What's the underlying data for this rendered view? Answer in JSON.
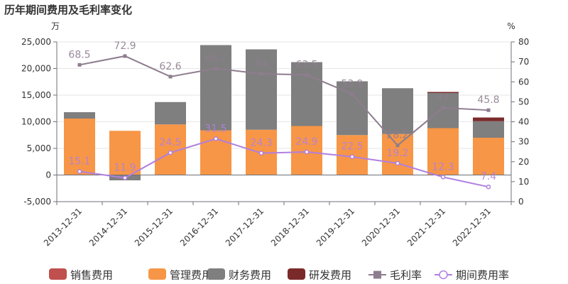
{
  "chart_data": {
    "type": "bar",
    "title": "历年期间费用及毛利率变化",
    "left_unit": "万",
    "right_unit": "%",
    "categories": [
      "2013-12-31",
      "2014-12-31",
      "2015-12-31",
      "2016-12-31",
      "2017-12-31",
      "2018-12-31",
      "2019-12-31",
      "2020-12-31",
      "2021-12-31",
      "2022-12-31"
    ],
    "left_axis": {
      "min": -5000,
      "max": 25000,
      "ticks": [
        "-5,000",
        "0",
        "5,000",
        "10,000",
        "15,000",
        "20,000",
        "25,000"
      ]
    },
    "right_axis": {
      "min": 0,
      "max": 80,
      "ticks": [
        "0",
        "10",
        "20",
        "30",
        "40",
        "50",
        "60",
        "70",
        "80"
      ]
    },
    "bar_series": [
      {
        "name": "销售费用",
        "color": "#c0504d",
        "values": [
          0,
          0,
          0,
          0,
          0,
          0,
          0,
          0,
          0,
          0
        ]
      },
      {
        "name": "管理费用",
        "color": "#f79646",
        "values": [
          10600,
          8300,
          9500,
          8400,
          8500,
          9200,
          7500,
          7700,
          8800,
          7000
        ]
      },
      {
        "name": "财务费用",
        "color": "#7f7f7f",
        "values": [
          1200,
          -1000,
          4200,
          16000,
          15100,
          12000,
          10100,
          8600,
          6600,
          3100
        ]
      },
      {
        "name": "研发费用",
        "color": "#7b2a2a",
        "values": [
          0,
          0,
          0,
          0,
          0,
          0,
          0,
          0,
          200,
          700
        ]
      }
    ],
    "line_series": [
      {
        "name": "毛利率",
        "color": "#8e7d8e",
        "marker": "square",
        "values": [
          68.5,
          72.9,
          62.6,
          66.7,
          64,
          63.5,
          53.9,
          28.2,
          47,
          45.8
        ],
        "labels": [
          "68.5",
          "72.9",
          "62.6",
          "66.7",
          "64",
          "63.5",
          "53.9",
          "28.2",
          "47",
          "45.8"
        ]
      },
      {
        "name": "期间费用率",
        "color": "#b07fe0",
        "marker": "circle",
        "values": [
          15.1,
          11.9,
          24.5,
          31.5,
          24.3,
          24.9,
          22.5,
          19.2,
          12.3,
          7.4
        ],
        "labels": [
          "15.1",
          "11.9",
          "24.5",
          "31.5",
          "24.3",
          "24.9",
          "22.5",
          "19.2",
          "12.3",
          "7.4"
        ]
      }
    ],
    "legend_position": "bottom"
  }
}
